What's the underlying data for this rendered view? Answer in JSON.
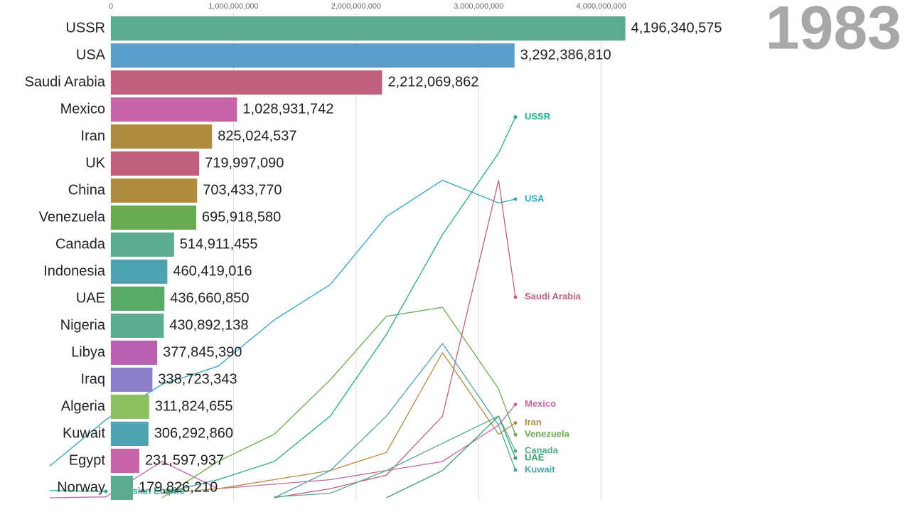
{
  "chart_data": [
    {
      "type": "barh",
      "year_label": "1983",
      "categories": [
        "USSR",
        "USA",
        "Saudi Arabia",
        "Mexico",
        "Iran",
        "UK",
        "China",
        "Venezuela",
        "Canada",
        "Indonesia",
        "UAE",
        "Nigeria",
        "Libya",
        "Iraq",
        "Algeria",
        "Kuwait",
        "Egypt",
        "Norway"
      ],
      "values": [
        4196340575,
        3292386810,
        2212069862,
        1028931742,
        825024537,
        719997090,
        703433770,
        695918580,
        514911455,
        460419016,
        436660850,
        430892138,
        377845390,
        338723343,
        311824655,
        306292860,
        231597937,
        179826210
      ],
      "value_labels": [
        "4,196,340,575",
        "3,292,386,810",
        "2,212,069,862",
        "1,028,931,742",
        "825,024,537",
        "719,997,090",
        "703,433,770",
        "695,918,580",
        "514,911,455",
        "460,419,016",
        "436,660,850",
        "430,892,138",
        "377,845,390",
        "338,723,343",
        "311,824,655",
        "306,292,860",
        "231,597,937",
        "179,826,210"
      ],
      "colors": [
        "#5aab8f",
        "#5b9ec9",
        "#c0607d",
        "#c765a8",
        "#b08c40",
        "#c0607d",
        "#b08c40",
        "#6aaa50",
        "#5aab8f",
        "#4fa3b0",
        "#5aab6a",
        "#5aab8f",
        "#b960b0",
        "#8b7fc9",
        "#8cc060",
        "#4fa3b0",
        "#c765a8",
        "#5aab8f"
      ],
      "xlim": [
        0,
        4500000000
      ],
      "xticks": [
        0,
        {
          "value": 1000000000,
          "label": "1,000,000,000"
        },
        {
          "value": 2000000000,
          "label": "2,000,000,000"
        },
        {
          "value": 3000000000,
          "label": "3,000,000,000"
        },
        {
          "value": 4000000000,
          "label": "4,000,000,000"
        }
      ],
      "grid": true
    },
    {
      "type": "line",
      "x": [
        1900,
        1910,
        1920,
        1930,
        1940,
        1950,
        1960,
        1970,
        1980,
        1983
      ],
      "xlim": [
        1900,
        1983
      ],
      "ylim": [
        0,
        5330000000
      ],
      "series": [
        {
          "name": "USSR",
          "color": "#2aa98a",
          "values": [
            null,
            null,
            50000000,
            200000000,
            400000000,
            900000000,
            1800000000,
            2900000000,
            3800000000,
            4196340575
          ]
        },
        {
          "name": "USA",
          "color": "#2fa4c4",
          "values": [
            350000000,
            860000000,
            1250000000,
            1450000000,
            1960000000,
            2350000000,
            3100000000,
            3500000000,
            3250000000,
            3292386810
          ]
        },
        {
          "name": "Saudi Arabia",
          "color": "#c0607d",
          "values": [
            null,
            null,
            null,
            null,
            0,
            100000000,
            250000000,
            900000000,
            3500000000,
            2212069862
          ]
        },
        {
          "name": "Mexico",
          "color": "#c765a8",
          "values": [
            0,
            10000000,
            400000000,
            100000000,
            150000000,
            200000000,
            300000000,
            400000000,
            800000000,
            1028931742
          ]
        },
        {
          "name": "Iran",
          "color": "#b08c40",
          "values": [
            null,
            null,
            50000000,
            100000000,
            200000000,
            300000000,
            500000000,
            1600000000,
            700000000,
            825024537
          ]
        },
        {
          "name": "Venezuela",
          "color": "#6aaa50",
          "values": [
            null,
            null,
            0,
            400000000,
            700000000,
            1300000000,
            2000000000,
            2100000000,
            1200000000,
            695918580
          ]
        },
        {
          "name": "Canada",
          "color": "#5aab8f",
          "values": [
            null,
            null,
            null,
            null,
            10000000,
            50000000,
            300000000,
            600000000,
            900000000,
            514911455
          ]
        },
        {
          "name": "UAE",
          "color": "#3a9e6a",
          "values": [
            null,
            null,
            null,
            null,
            null,
            null,
            0,
            300000000,
            900000000,
            436660850
          ]
        },
        {
          "name": "Kuwait",
          "color": "#4fa3b0",
          "values": [
            null,
            null,
            null,
            null,
            0,
            300000000,
            900000000,
            1700000000,
            800000000,
            306292860
          ]
        },
        {
          "name": "Russian Empire",
          "color": "#2aa98a",
          "values": [
            80000000,
            70000000,
            null,
            null,
            null,
            null,
            null,
            null,
            null,
            null
          ]
        }
      ]
    }
  ]
}
